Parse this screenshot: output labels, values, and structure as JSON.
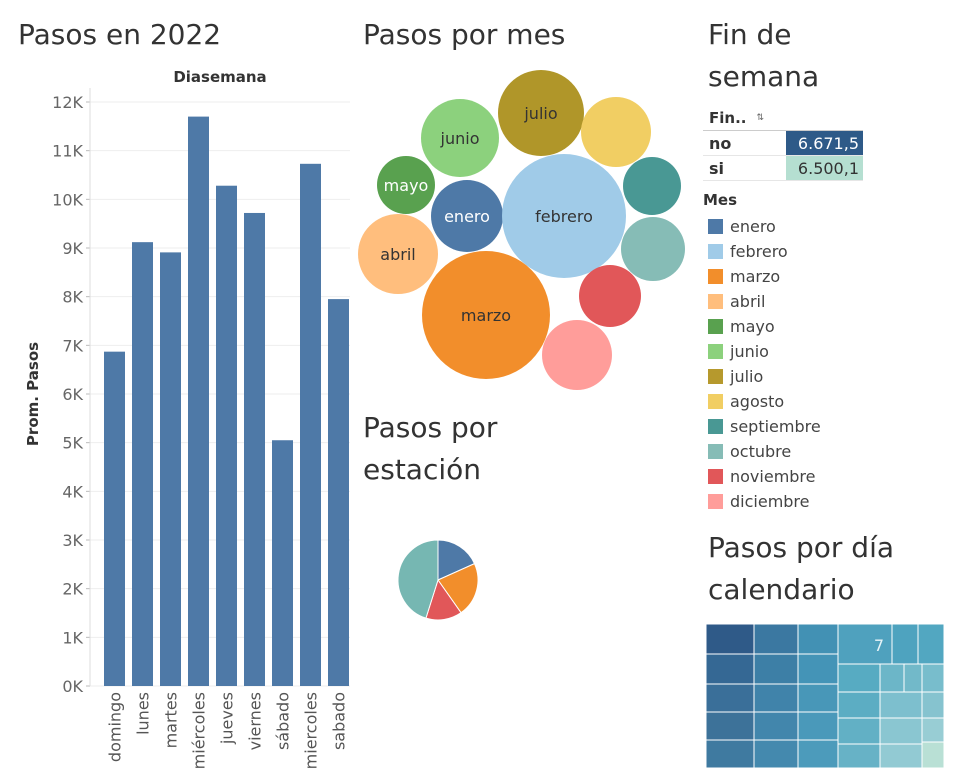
{
  "titles": {
    "pasos_2022": "Pasos en 2022",
    "pasos_mes": "Pasos por mes",
    "fin_semana": [
      "Fin de",
      "semana"
    ],
    "pasos_estacion": [
      "Pasos por",
      "estación"
    ],
    "pasos_dia": [
      "Pasos por día",
      "calendario"
    ]
  },
  "bar_chart": {
    "type": "bar",
    "header": "Diasemana",
    "ylabel": "Prom. Pasos",
    "categories": [
      "domingo",
      "lunes",
      "martes",
      "miércoles",
      "jueves",
      "viernes",
      "sábado",
      "miercoles",
      "sabado"
    ],
    "values": [
      6870,
      9120,
      8910,
      11700,
      10280,
      9720,
      5050,
      10730,
      7950
    ],
    "ylim": [
      0,
      12000
    ],
    "ticks": [
      0,
      1000,
      2000,
      3000,
      4000,
      5000,
      6000,
      7000,
      8000,
      9000,
      10000,
      11000,
      12000
    ],
    "tick_labels": [
      "0K",
      "1K",
      "2K",
      "3K",
      "4K",
      "5K",
      "6K",
      "7K",
      "8K",
      "9K",
      "10K",
      "11K",
      "12K"
    ],
    "color": "#4e79a7"
  },
  "chart_data": [
    {
      "type": "bar",
      "title": "Pasos en 2022",
      "xlabel": "Diasemana",
      "ylabel": "Prom. Pasos",
      "categories": [
        "domingo",
        "lunes",
        "martes",
        "miércoles",
        "jueves",
        "viernes",
        "sábado",
        "miercoles",
        "sabado"
      ],
      "values": [
        6870,
        9120,
        8910,
        11700,
        10280,
        9720,
        5050,
        10730,
        7950
      ],
      "ylim": [
        0,
        12000
      ]
    },
    {
      "type": "bubble",
      "title": "Pasos por mes",
      "categories": [
        "enero",
        "febrero",
        "marzo",
        "abril",
        "mayo",
        "junio",
        "julio",
        "agosto",
        "septiembre",
        "octubre",
        "noviembre",
        "diciembre"
      ],
      "relative_size": [
        1.0,
        3.6,
        4.6,
        1.4,
        0.55,
        1.2,
        1.3,
        0.85,
        0.55,
        0.75,
        0.68,
        0.93
      ]
    },
    {
      "type": "table",
      "title": "Fin de semana",
      "header": "Fin..",
      "rows": [
        {
          "label": "no",
          "value": "6.671,5"
        },
        {
          "label": "si",
          "value": "6.500,1"
        }
      ]
    },
    {
      "type": "pie",
      "title": "Pasos por estación",
      "values": [
        15,
        18,
        12,
        37
      ],
      "colors": [
        "#4e79a7",
        "#f28e2b",
        "#e15759",
        "#76b7b2"
      ]
    },
    {
      "type": "treemap",
      "title": "Pasos por día calendario",
      "visible_label": "7"
    }
  ],
  "bubbles": [
    {
      "label": "julio",
      "color": "#b09629",
      "text_color": "#333333"
    },
    {
      "label": "junio",
      "color": "#8cd17d",
      "text_color": "#333333"
    },
    {
      "label": "",
      "color": "#f1ce63",
      "text_color": "#333333"
    },
    {
      "label": "mayo",
      "color": "#59a14f",
      "text_color": "#ffffff"
    },
    {
      "label": "enero",
      "color": "#4e79a7",
      "text_color": "#ffffff"
    },
    {
      "label": "febrero",
      "color": "#a0cbe8",
      "text_color": "#333333"
    },
    {
      "label": "",
      "color": "#499894",
      "text_color": "#333333"
    },
    {
      "label": "",
      "color": "#86bcb6",
      "text_color": "#333333"
    },
    {
      "label": "abril",
      "color": "#ffbe7d",
      "text_color": "#333333"
    },
    {
      "label": "marzo",
      "color": "#f28e2b",
      "text_color": "#333333"
    },
    {
      "label": "",
      "color": "#e15759",
      "text_color": "#333333"
    },
    {
      "label": "",
      "color": "#ff9d9a",
      "text_color": "#333333"
    }
  ],
  "fin_semana": {
    "header": "Fin..",
    "sort_icon": "sort-icon",
    "rows": [
      {
        "label": "no",
        "value": "6.671,5",
        "bg": "#2e5a88",
        "fg": "#ffffff"
      },
      {
        "label": "si",
        "value": "6.500,1",
        "bg": "#b5dfd1",
        "fg": "#333333"
      }
    ]
  },
  "legend": {
    "title": "Mes",
    "items": [
      {
        "label": "enero",
        "color": "#4e79a7"
      },
      {
        "label": "febrero",
        "color": "#a0cbe8"
      },
      {
        "label": "marzo",
        "color": "#f28e2b"
      },
      {
        "label": "abril",
        "color": "#ffbe7d"
      },
      {
        "label": "mayo",
        "color": "#59a14f"
      },
      {
        "label": "junio",
        "color": "#8cd17d"
      },
      {
        "label": "julio",
        "color": "#b6992d"
      },
      {
        "label": "agosto",
        "color": "#f1ce63"
      },
      {
        "label": "septiembre",
        "color": "#499894"
      },
      {
        "label": "octubre",
        "color": "#86bcb6"
      },
      {
        "label": "noviembre",
        "color": "#e15759"
      },
      {
        "label": "diciembre",
        "color": "#ff9d9a"
      }
    ]
  },
  "pie": {
    "values": [
      15,
      18,
      12,
      37
    ],
    "colors": [
      "#4e79a7",
      "#f28e2b",
      "#e15759",
      "#76b7b2"
    ]
  },
  "treemap": {
    "label": "7"
  }
}
